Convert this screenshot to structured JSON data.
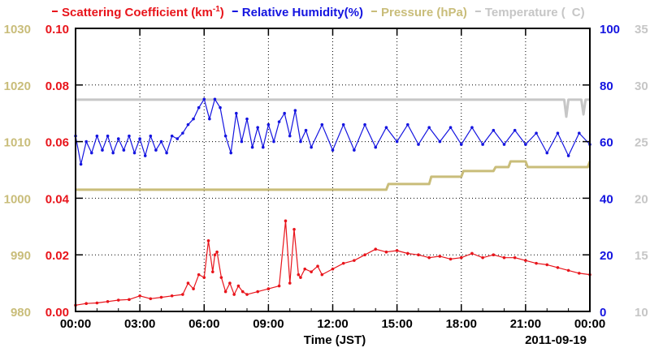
{
  "chart_data": {
    "type": "line",
    "title": "",
    "legend_placement": "top",
    "legend": [
      {
        "text": "Scattering Coefficient (km",
        "sup": "-1",
        "suffix": ")",
        "color": "#e8141b"
      },
      {
        "text": "Relative Humidity(%)",
        "sup": "",
        "suffix": "",
        "color": "#1414e0"
      },
      {
        "text": "Pressure (hPa)",
        "sup": "",
        "suffix": "",
        "color": "#c9bd7a"
      },
      {
        "text": "Temperature (",
        "sup": "",
        "suffix": "C)",
        "color": "#c6c6c6"
      }
    ],
    "xlabel": "Time (JST)",
    "date_label": "2011-09-19",
    "x_ticks": [
      "00:00",
      "03:00",
      "06:00",
      "09:00",
      "12:00",
      "15:00",
      "18:00",
      "21:00",
      "00:00"
    ],
    "xlim": [
      0,
      24
    ],
    "grid": true,
    "axes": {
      "scattering": {
        "range": [
          0.0,
          0.1
        ],
        "ticks": [
          "0.00",
          "0.02",
          "0.04",
          "0.06",
          "0.08",
          "0.10"
        ],
        "color": "#e8141b"
      },
      "pressure": {
        "range": [
          980,
          1030
        ],
        "ticks": [
          "980",
          "990",
          "1000",
          "1010",
          "1020",
          "1030"
        ],
        "color": "#c9bd7a"
      },
      "humidity": {
        "range": [
          0,
          100
        ],
        "ticks": [
          "0",
          "20",
          "40",
          "60",
          "80",
          "100"
        ],
        "color": "#1414e0"
      },
      "temperature": {
        "range": [
          10,
          35
        ],
        "ticks": [
          "10",
          "15",
          "20",
          "25",
          "30",
          "35"
        ],
        "color": "#c6c6c6"
      }
    },
    "series": [
      {
        "name": "Scattering Coefficient",
        "axis": "scattering",
        "color": "#e8141b",
        "x": [
          0,
          0.5,
          1,
          1.5,
          2,
          2.5,
          3,
          3.5,
          4,
          4.5,
          5,
          5.25,
          5.5,
          5.75,
          6,
          6.2,
          6.4,
          6.5,
          6.6,
          6.8,
          7,
          7.2,
          7.4,
          7.6,
          7.8,
          8,
          8.5,
          9,
          9.5,
          9.8,
          10,
          10.2,
          10.4,
          10.5,
          10.7,
          11,
          11.3,
          11.5,
          12,
          12.5,
          13,
          13.5,
          14,
          14.5,
          15,
          15.5,
          16,
          16.5,
          17,
          17.5,
          18,
          18.5,
          19,
          19.5,
          20,
          20.5,
          21,
          21.5,
          22,
          22.5,
          23,
          23.5,
          24
        ],
        "y": [
          0.0022,
          0.0028,
          0.003,
          0.0035,
          0.004,
          0.0042,
          0.0055,
          0.0045,
          0.005,
          0.0055,
          0.006,
          0.01,
          0.008,
          0.013,
          0.012,
          0.025,
          0.014,
          0.02,
          0.021,
          0.012,
          0.007,
          0.01,
          0.006,
          0.009,
          0.007,
          0.006,
          0.007,
          0.008,
          0.009,
          0.032,
          0.01,
          0.029,
          0.013,
          0.012,
          0.015,
          0.014,
          0.016,
          0.013,
          0.015,
          0.017,
          0.018,
          0.02,
          0.022,
          0.021,
          0.0215,
          0.0205,
          0.02,
          0.019,
          0.0195,
          0.0185,
          0.019,
          0.0205,
          0.019,
          0.02,
          0.019,
          0.019,
          0.018,
          0.017,
          0.0165,
          0.0155,
          0.0145,
          0.0135,
          0.013
        ]
      },
      {
        "name": "Relative Humidity",
        "axis": "humidity",
        "color": "#1414e0",
        "x": [
          0,
          0.25,
          0.5,
          0.75,
          1,
          1.25,
          1.5,
          1.75,
          2,
          2.25,
          2.5,
          2.75,
          3,
          3.25,
          3.5,
          3.75,
          4,
          4.25,
          4.5,
          4.75,
          5,
          5.25,
          5.5,
          5.75,
          6,
          6.25,
          6.5,
          6.75,
          7,
          7.25,
          7.5,
          7.75,
          8,
          8.25,
          8.5,
          8.75,
          9,
          9.25,
          9.5,
          9.75,
          10,
          10.25,
          10.5,
          10.75,
          11,
          11.5,
          12,
          12.5,
          13,
          13.5,
          14,
          14.5,
          15,
          15.5,
          16,
          16.5,
          17,
          17.5,
          18,
          18.5,
          19,
          19.5,
          20,
          20.5,
          21,
          21.5,
          22,
          22.5,
          23,
          23.5,
          24
        ],
        "y": [
          62,
          52,
          60,
          56,
          62,
          57,
          62,
          56,
          61,
          57,
          62,
          56,
          61,
          55,
          62,
          57,
          60,
          56,
          62,
          61,
          63,
          66,
          68,
          72,
          75,
          68,
          75,
          72,
          62,
          56,
          70,
          60,
          68,
          58,
          65,
          58,
          66,
          60,
          67,
          70,
          62,
          71,
          60,
          64,
          58,
          66,
          57,
          66,
          57,
          66,
          58,
          65,
          60,
          66,
          59,
          65,
          60,
          65,
          59,
          65,
          59,
          64,
          59,
          64,
          59,
          63,
          56,
          63,
          55,
          63,
          59
        ]
      },
      {
        "name": "Pressure",
        "axis": "pressure",
        "color": "#c9bd7a",
        "x": [
          0,
          14.5,
          14.6,
          16.5,
          16.6,
          18,
          18.1,
          19.5,
          19.6,
          20.2,
          20.3,
          21,
          21.1,
          23.9,
          24
        ],
        "y": [
          1001.5,
          1001.5,
          1002.5,
          1002.5,
          1003.8,
          1003.8,
          1004.8,
          1004.8,
          1005.5,
          1005.5,
          1006.5,
          1006.5,
          1005.5,
          1005.5,
          1006.5
        ]
      },
      {
        "name": "Temperature",
        "axis": "temperature",
        "color": "#c6c6c6",
        "x": [
          0,
          22.8,
          22.9,
          23.0,
          23.1,
          23.6,
          23.7,
          23.8,
          24
        ],
        "y": [
          28.7,
          28.7,
          27.2,
          28.7,
          28.7,
          28.7,
          27.4,
          28.7,
          28.7
        ]
      }
    ]
  }
}
